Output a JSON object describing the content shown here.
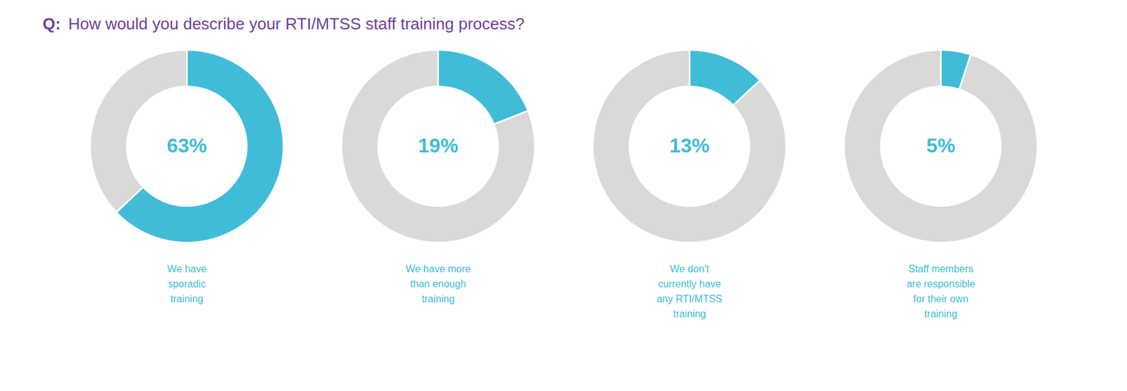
{
  "chart_data": {
    "type": "pie",
    "title": "Q:",
    "subtitle": "How would you describe your RTI/MTSS staff training process?",
    "title_color": "#6b3fa0",
    "categories": [
      "We have\nsporadic\ntraining",
      "We have more\nthan enough\ntraining",
      "We don't\ncurrently have\nany RTI/MTSS\ntraining",
      "Staff members\nare responsible\nfor their own\ntraining"
    ],
    "values": [
      63,
      19,
      13,
      5
    ],
    "value_labels": [
      "63%",
      "19%",
      "13%",
      "5%"
    ],
    "remainder_values": [
      37,
      81,
      87,
      95
    ],
    "colors": [
      "#40bcd8",
      "#d9d9d9"
    ]
  }
}
